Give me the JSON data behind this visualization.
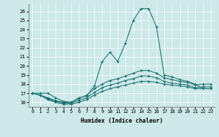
{
  "xlabel": "Humidex (Indice chaleur)",
  "ylabel": "",
  "background_color": "#cce8e8",
  "line_color": "#1a7070",
  "xlim": [
    -0.5,
    23.5
  ],
  "ylim": [
    15.5,
    26.8
  ],
  "xticks": [
    0,
    1,
    2,
    3,
    4,
    5,
    6,
    7,
    8,
    9,
    10,
    11,
    12,
    13,
    14,
    15,
    16,
    17,
    18,
    19,
    20,
    21,
    22,
    23
  ],
  "yticks": [
    16,
    17,
    18,
    19,
    20,
    21,
    22,
    23,
    24,
    25,
    26
  ],
  "series": [
    [
      17.0,
      17.0,
      17.0,
      16.5,
      16.1,
      16.0,
      16.5,
      16.7,
      17.8,
      20.5,
      21.5,
      20.5,
      22.5,
      25.0,
      26.3,
      26.3,
      24.3,
      19.0,
      18.8,
      18.5,
      18.3,
      18.0,
      17.5,
      17.5
    ],
    [
      17.0,
      16.8,
      16.3,
      16.0,
      15.8,
      15.8,
      16.0,
      16.3,
      16.8,
      17.2,
      17.5,
      17.7,
      17.9,
      18.1,
      18.3,
      18.3,
      18.2,
      18.0,
      17.9,
      17.8,
      17.7,
      17.5,
      17.5,
      17.5
    ],
    [
      17.0,
      16.8,
      16.4,
      16.1,
      15.9,
      15.9,
      16.2,
      16.5,
      17.1,
      17.6,
      17.9,
      18.1,
      18.4,
      18.6,
      18.9,
      18.9,
      18.7,
      18.3,
      18.1,
      18.0,
      17.9,
      17.6,
      17.7,
      17.7
    ],
    [
      17.0,
      16.8,
      16.5,
      16.2,
      16.0,
      16.0,
      16.4,
      16.8,
      17.5,
      18.0,
      18.4,
      18.6,
      18.9,
      19.2,
      19.5,
      19.5,
      19.2,
      18.7,
      18.5,
      18.3,
      18.2,
      17.9,
      18.0,
      18.0
    ]
  ]
}
